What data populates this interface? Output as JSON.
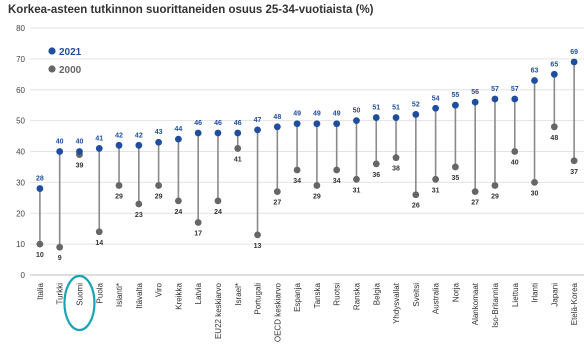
{
  "chart_data": {
    "type": "dot-range",
    "title": "Korkea-asteen tutkinnon suorittaneiden osuus 25-34-vuotiaista (%)",
    "xlabel": "",
    "ylabel": "",
    "ylim": [
      0,
      80
    ],
    "yticks": [
      "0",
      "10",
      "20",
      "30",
      "40",
      "50",
      "60",
      "70",
      "80"
    ],
    "grid": true,
    "legend_position": "top-left",
    "highlighted_category": "Suomi",
    "categories": [
      "Italia",
      "Turkki",
      "Suomi",
      "Puola",
      "Islanti*",
      "Itävalta",
      "Viro",
      "Kreikka",
      "Latvia",
      "EU22 keskiarvo",
      "Israel*",
      "Portugali",
      "OECD keskiarvo",
      "Espanja",
      "Tanska",
      "Ruotsi",
      "Ranska",
      "Belgia",
      "Yhdysvallat",
      "Sveitsi",
      "Australia",
      "Norja",
      "Alankomaat",
      "Iso-Britannia",
      "Liettua",
      "Irlanti",
      "Japani",
      "Etelä-Korea"
    ],
    "series": [
      {
        "name": "2021",
        "color": "#1f4e9e",
        "values": [
          28,
          40,
          40,
          41,
          42,
          42,
          43,
          44,
          46,
          46,
          46,
          47,
          48,
          49,
          49,
          49,
          50,
          51,
          51,
          52,
          54,
          55,
          56,
          57,
          57,
          63,
          65,
          69
        ],
        "labels": [
          "28",
          "40",
          "40",
          "41",
          "42",
          "42",
          "43",
          "44",
          "46",
          "46",
          "46",
          "47",
          "48",
          "49",
          "49",
          "49",
          "50",
          "51",
          "51",
          "52",
          "54",
          "55",
          "56",
          "57",
          "57",
          "63",
          "65",
          "69"
        ]
      },
      {
        "name": "2000",
        "color": "#666666",
        "values": [
          10,
          9,
          39,
          14,
          29,
          23,
          29,
          24,
          17,
          24,
          41,
          13,
          27,
          34,
          29,
          34,
          31,
          36,
          38,
          26,
          31,
          35,
          27,
          29,
          40,
          30,
          48,
          37
        ],
        "labels": [
          "10",
          "9",
          "39",
          "14",
          "29",
          "23",
          "29",
          "24",
          "17",
          "24",
          "41",
          "13",
          "27",
          "34",
          "29",
          "34",
          "31",
          "36",
          "38",
          "26",
          "31",
          "35",
          "27",
          "29",
          "40",
          "30",
          "48",
          "37"
        ]
      }
    ]
  }
}
